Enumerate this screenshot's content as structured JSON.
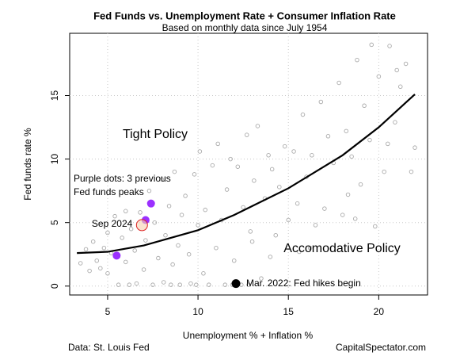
{
  "chart_data": {
    "type": "scatter",
    "title": "Fed Funds vs. Unemployment Rate + Consumer Inflation Rate",
    "subtitle": "Based on monthly data since July 1954",
    "x_label": "Unemployment % + Inflation %",
    "y_label": "Fed funds rate %",
    "xlim": [
      2.9,
      22.7
    ],
    "ylim": [
      -0.7,
      19.9
    ],
    "xticks": [
      5,
      10,
      15,
      20
    ],
    "yticks": [
      0,
      5,
      10,
      15
    ],
    "grid": true,
    "points": {
      "color": "#aaaaaa",
      "x": [
        3.5,
        3.8,
        4.0,
        4.2,
        4.4,
        4.6,
        4.8,
        5.0,
        5.0,
        5.2,
        5.4,
        5.6,
        5.8,
        6.0,
        6.0,
        6.2,
        6.3,
        6.5,
        6.6,
        6.8,
        7.0,
        7.1,
        7.3,
        7.5,
        7.6,
        7.8,
        8.0,
        8.1,
        8.2,
        8.4,
        8.6,
        8.7,
        8.9,
        9.0,
        9.1,
        9.3,
        9.5,
        9.6,
        9.8,
        10.0,
        10.1,
        10.3,
        10.4,
        10.6,
        10.8,
        11.0,
        11.1,
        11.3,
        11.5,
        11.6,
        11.8,
        12.0,
        12.2,
        12.4,
        12.5,
        12.7,
        12.9,
        13.1,
        13.3,
        13.5,
        13.7,
        13.9,
        14.1,
        14.3,
        14.5,
        14.8,
        15.0,
        15.3,
        15.5,
        15.8,
        16.0,
        16.3,
        16.5,
        16.8,
        17.0,
        17.2,
        17.5,
        17.8,
        18.0,
        18.2,
        18.5,
        18.8,
        19.0,
        19.2,
        19.5,
        19.6,
        19.8,
        20.0,
        20.3,
        20.6,
        20.9,
        21.2,
        21.5,
        21.8,
        22.0,
        20.5,
        18.7,
        16.2,
        14.0,
        12.8,
        11.9,
        9.9,
        8.5,
        21.0,
        18.3,
        15.6,
        13.0
      ],
      "y": [
        1.8,
        2.9,
        1.2,
        3.5,
        2.0,
        1.4,
        3.0,
        4.2,
        1.0,
        2.6,
        5.5,
        0.1,
        3.8,
        1.9,
        5.9,
        0.1,
        4.5,
        2.8,
        0.2,
        5.8,
        1.3,
        3.6,
        7.5,
        0.1,
        5.0,
        2.2,
        8.4,
        0.3,
        4.0,
        6.3,
        1.7,
        9.0,
        3.2,
        0.1,
        5.6,
        7.1,
        2.5,
        0.2,
        8.8,
        4.8,
        10.6,
        1.0,
        6.0,
        0.1,
        9.5,
        3.0,
        11.2,
        5.2,
        0.1,
        7.6,
        10.0,
        2.0,
        9.4,
        0.1,
        6.2,
        11.9,
        4.3,
        8.3,
        12.6,
        0.6,
        6.9,
        10.3,
        9.2,
        4.0,
        7.8,
        11.0,
        5.2,
        10.6,
        6.5,
        13.5,
        8.6,
        10.3,
        4.8,
        14.5,
        6.1,
        11.8,
        9.7,
        16.0,
        5.6,
        12.2,
        10.2,
        17.8,
        8.0,
        14.2,
        11.5,
        19.0,
        4.7,
        16.5,
        9.0,
        18.9,
        12.9,
        15.7,
        17.5,
        9.0,
        10.9,
        11.2,
        5.3,
        3.0,
        2.3,
        0.1,
        0.1,
        0.1,
        0.1,
        17.0,
        7.2,
        2.7,
        3.5
      ]
    },
    "fit": {
      "color": "#000000",
      "x": [
        3.3,
        5,
        7,
        10,
        12,
        15,
        18,
        20,
        22
      ],
      "y": [
        2.6,
        2.7,
        3.2,
        4.4,
        5.6,
        7.7,
        10.3,
        12.5,
        15.1
      ]
    },
    "peaks": {
      "color": "#9b30ff",
      "x": [
        5.5,
        7.1,
        7.4
      ],
      "y": [
        2.4,
        5.2,
        6.5
      ]
    },
    "note": [
      "Purple dots: 3 previous",
      "Fed funds peaks"
    ],
    "sep_2024": {
      "label": "Sep 2024",
      "color": "#dd2222",
      "x": 6.9,
      "y": 4.8
    },
    "mar_2022": {
      "label": "Mar. 2022: Fed hikes begin",
      "color": "#000000",
      "x": 12.1,
      "y": 0.2
    },
    "annotations": [
      "Tight Policy",
      "Accomodative Policy"
    ],
    "source": "Data: St. Louis Fed",
    "credit": "CapitalSpectator.com"
  }
}
